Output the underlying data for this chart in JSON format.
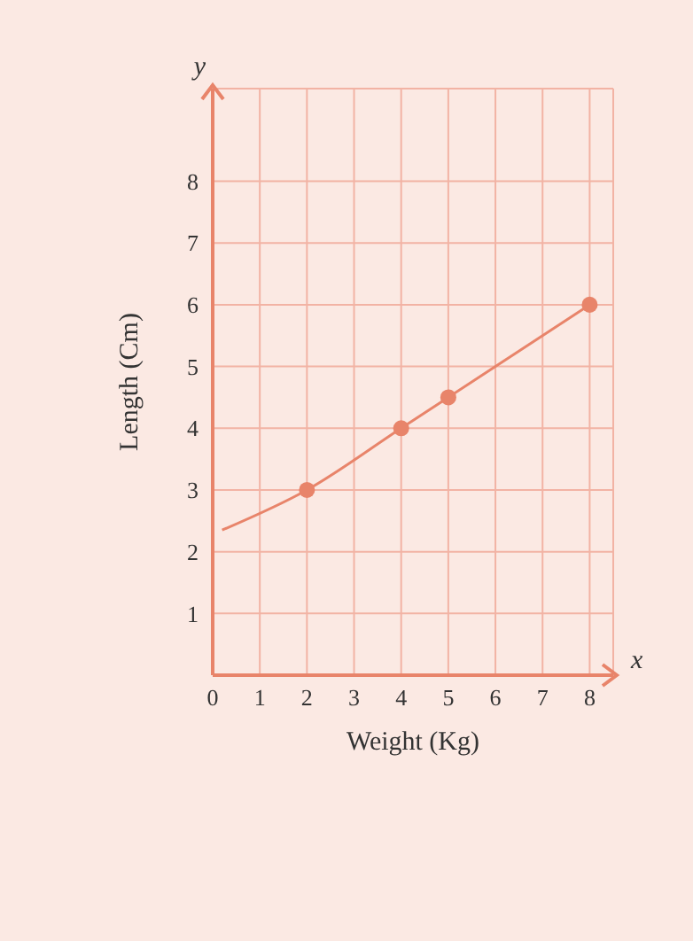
{
  "chart_data": {
    "type": "line",
    "xlabel": "Weight (Kg)",
    "ylabel": "Length (Cm)",
    "annotations": [
      "x",
      "y"
    ],
    "xlim": [
      0,
      8.5
    ],
    "ylim": [
      0,
      9.5
    ],
    "xticks": [
      {
        "value": 0,
        "label": "0"
      },
      1,
      2,
      3,
      4,
      5,
      6,
      7,
      8
    ],
    "yticks": [
      {
        "value": 0,
        "label": null
      },
      1,
      2,
      3,
      4,
      5,
      6,
      7,
      8
    ],
    "grid": true,
    "series": [
      {
        "color": "#e8846a",
        "marker": "none",
        "x": [
          0.2,
          2,
          4,
          5,
          8
        ],
        "values": [
          2.35,
          3,
          4,
          4.5,
          6
        ]
      },
      {
        "type": "scatter",
        "color": "#e8846a",
        "marker": "circle",
        "x": [
          2,
          4,
          5,
          8
        ],
        "values": [
          3,
          4,
          4.5,
          6
        ]
      }
    ]
  }
}
